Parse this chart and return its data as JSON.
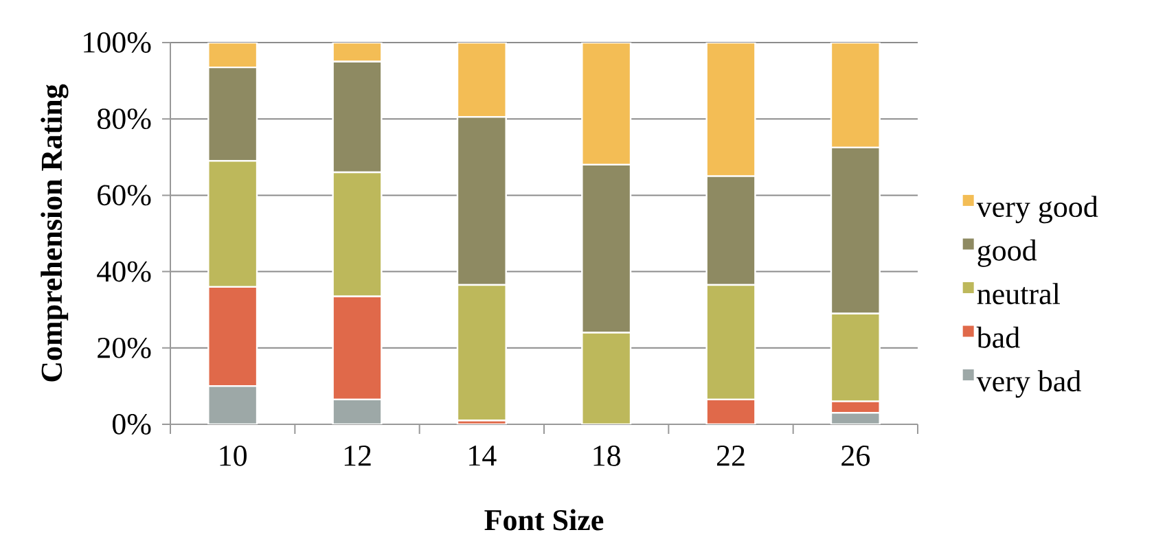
{
  "chart_data": {
    "type": "bar",
    "stacked": true,
    "xlabel": "Font Size",
    "ylabel": "Comprehension Rating",
    "categories": [
      "10",
      "12",
      "14",
      "18",
      "22",
      "26"
    ],
    "series": [
      {
        "name": "very bad",
        "color": "#9da8a7",
        "values": [
          10,
          6.5,
          0,
          0,
          0,
          3
        ]
      },
      {
        "name": "bad",
        "color": "#e0694a",
        "values": [
          26,
          27,
          1,
          0,
          6.5,
          3
        ]
      },
      {
        "name": "neutral",
        "color": "#bdb85b",
        "values": [
          33,
          32.5,
          35.5,
          24,
          30,
          23
        ]
      },
      {
        "name": "good",
        "color": "#8e8a62",
        "values": [
          24.5,
          29,
          44,
          44,
          28.5,
          43.5
        ]
      },
      {
        "name": "very good",
        "color": "#f3bd55",
        "values": [
          6.5,
          5,
          19.5,
          32,
          35,
          27.5
        ]
      }
    ],
    "ylim": [
      0,
      100
    ],
    "yticks": [
      {
        "value": 0,
        "label": "0%"
      },
      {
        "value": 20,
        "label": "20%"
      },
      {
        "value": 40,
        "label": "40%"
      },
      {
        "value": 60,
        "label": "60%"
      },
      {
        "value": 80,
        "label": "80%"
      },
      {
        "value": 100,
        "label": "100%"
      }
    ],
    "grid": "y",
    "legend": "right"
  }
}
